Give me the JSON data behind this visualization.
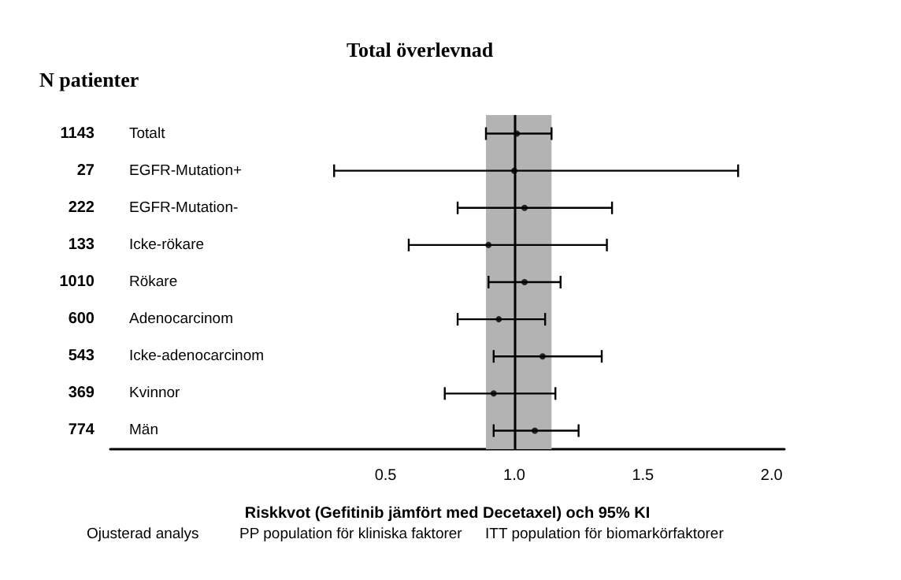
{
  "chart_data": {
    "type": "scatter",
    "orientation": "horizontal",
    "title": "Total överlevnad",
    "xlabel": "Riskkvot (Gefitinib jämfört med Decetaxel) och 95% KI",
    "categories": [
      "Totalt",
      "EGFR-Mutation+",
      "EGFR-Mutation-",
      "Icke-rökare",
      "Rökare",
      "Adenocarcinom",
      "Icke-adenocarcinom",
      "Kvinnor",
      "Män"
    ],
    "values": [
      1.01,
      1.0,
      1.04,
      0.9,
      1.04,
      0.94,
      1.11,
      0.92,
      1.08
    ],
    "errors": [
      [
        0.89,
        1.145
      ],
      [
        0.3,
        1.87
      ],
      [
        0.78,
        1.38
      ],
      [
        0.59,
        1.36
      ],
      [
        0.9,
        1.18
      ],
      [
        0.78,
        1.12
      ],
      [
        0.92,
        1.34
      ],
      [
        0.73,
        1.16
      ],
      [
        0.92,
        1.25
      ]
    ],
    "color": "#000000",
    "marker": "circle",
    "grid": false,
    "xlim": [
      -0.57,
      2.05
    ],
    "xticks": [
      0.5,
      {
        "value": 1,
        "label": "1.0"
      },
      1.5,
      {
        "value": 2,
        "label": "2.0"
      }
    ],
    "ref_lines": [
      {
        "axis": "x",
        "value": 1,
        "color": "#000000"
      }
    ],
    "bands": [
      {
        "axis": "x",
        "from": 0.89,
        "to": 1.145,
        "color": "#b3b3b3"
      }
    ],
    "annotations": [
      "N patienter",
      "1143",
      "27",
      "222",
      "133",
      "1010",
      "600",
      "543",
      "369",
      "774",
      "Ojusterad analys",
      "PP population för kliniska faktorer",
      "ITT population för biomarkörfaktorer"
    ]
  }
}
